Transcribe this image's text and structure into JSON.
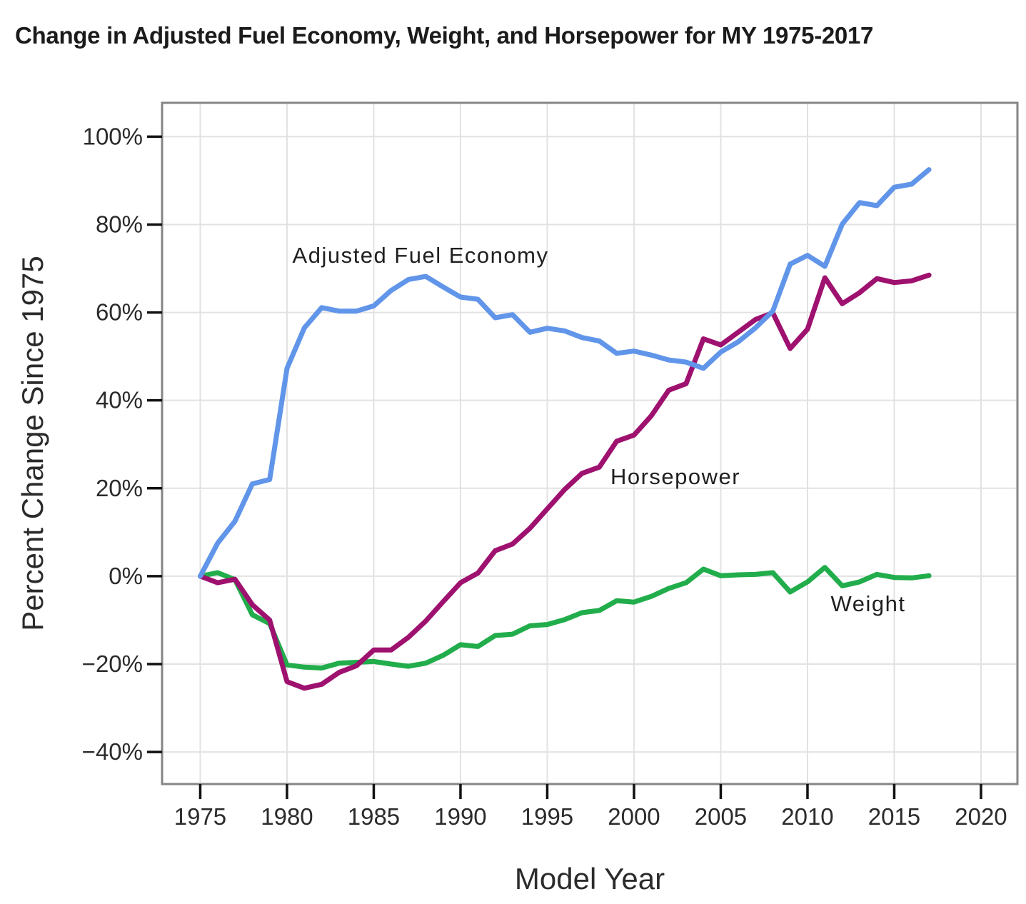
{
  "title": "Change in Adjusted Fuel Economy, Weight, and Horsepower for MY 1975-2017",
  "chart_data": {
    "type": "line",
    "title": "Change in Adjusted Fuel Economy, Weight, and Horsepower for MY 1975-2017",
    "xlabel": "Model Year",
    "ylabel": "Percent Change Since 1975",
    "grid": true,
    "legend_position": "inline-annotations",
    "xlim": [
      1972.8,
      2022.1
    ],
    "ylim": [
      -47.3,
      107.7
    ],
    "x_ticks": [
      1975,
      1980,
      1985,
      1990,
      1995,
      2000,
      2005,
      2010,
      2015,
      2020
    ],
    "y_ticks": [
      -40,
      -20,
      0,
      20,
      40,
      60,
      80,
      100
    ],
    "y_tick_suffix": "%",
    "x": [
      1975,
      1976,
      1977,
      1978,
      1979,
      1980,
      1981,
      1982,
      1983,
      1984,
      1985,
      1986,
      1987,
      1988,
      1989,
      1990,
      1991,
      1992,
      1993,
      1994,
      1995,
      1996,
      1997,
      1998,
      1999,
      2000,
      2001,
      2002,
      2003,
      2004,
      2005,
      2006,
      2007,
      2008,
      2009,
      2010,
      2011,
      2012,
      2013,
      2014,
      2015,
      2016,
      2017
    ],
    "series": [
      {
        "name": "Weight",
        "color": "#21AD4B",
        "values": [
          0,
          0.8,
          -0.8,
          -8.8,
          -10.8,
          -20.2,
          -20.7,
          -20.9,
          -19.8,
          -19.6,
          -19.4,
          -20.0,
          -20.5,
          -19.8,
          -18.0,
          -15.6,
          -16.0,
          -13.5,
          -13.2,
          -11.3,
          -11.0,
          -9.9,
          -8.3,
          -7.8,
          -5.6,
          -5.9,
          -4.6,
          -2.8,
          -1.5,
          1.6,
          0.1,
          0.3,
          0.4,
          0.8,
          -3.6,
          -1.3,
          2.0,
          -2.2,
          -1.3,
          0.4,
          -0.3,
          -0.4,
          0.1
        ]
      },
      {
        "name": "Horsepower",
        "color": "#9E116F",
        "values": [
          0,
          -1.5,
          -0.7,
          -6.5,
          -10.0,
          -24.0,
          -25.5,
          -24.6,
          -21.9,
          -20.4,
          -16.8,
          -16.8,
          -13.9,
          -10.2,
          -5.8,
          -1.5,
          0.7,
          5.8,
          7.3,
          10.9,
          15.3,
          19.7,
          23.4,
          24.8,
          30.7,
          32.1,
          36.5,
          42.3,
          43.8,
          54.0,
          52.6,
          55.5,
          58.4,
          59.9,
          51.8,
          56.2,
          67.9,
          62.0,
          64.5,
          67.7,
          66.8,
          67.2,
          68.5
        ]
      },
      {
        "name": "Adjusted Fuel Economy",
        "color": "#6095E9",
        "values": [
          0,
          7.5,
          12.5,
          21.0,
          22.0,
          47.3,
          56.5,
          61.1,
          60.3,
          60.3,
          61.5,
          65.0,
          67.5,
          68.2,
          65.8,
          63.5,
          63.0,
          58.8,
          59.5,
          55.5,
          56.4,
          55.8,
          54.3,
          53.5,
          50.7,
          51.2,
          50.3,
          49.2,
          48.7,
          47.3,
          51.0,
          53.3,
          56.5,
          60.3,
          71.0,
          73.0,
          70.5,
          80.1,
          85.0,
          84.3,
          88.5,
          89.2,
          92.5
        ]
      }
    ],
    "annotations": [
      {
        "text": "Adjusted Fuel Economy"
      },
      {
        "text": "Horsepower"
      },
      {
        "text": "Weight"
      }
    ]
  },
  "colors": {
    "background": "#FFFFFF",
    "frame": "#858585",
    "grid": "#E2E2E2",
    "tick": "#111111",
    "tick_text": "#2B2B2B",
    "title_text": "#1B1B1B",
    "annotation_text": "#1F1F1F",
    "fuel_economy_line": "#6095E9",
    "horsepower_line": "#9E116F",
    "weight_line": "#21AD4B"
  }
}
